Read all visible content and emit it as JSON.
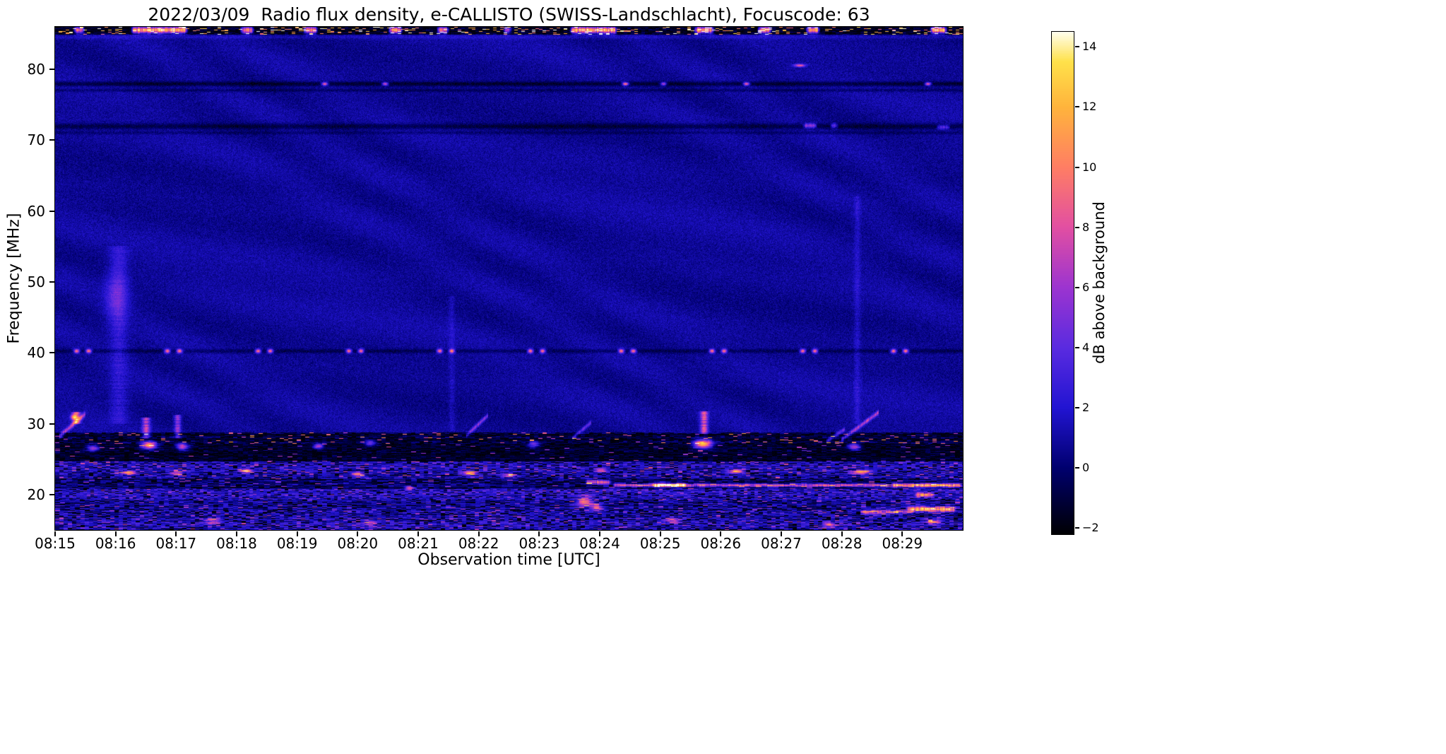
{
  "chart_data": {
    "type": "heatmap",
    "title": "2022/03/09  Radio flux density, e-CALLISTO (SWISS-Landschlacht), Focuscode: 63",
    "xlabel": "Observation time [UTC]",
    "ylabel": "Frequency [MHz]",
    "colorbar_label": "dB above background",
    "time_range_minutes": [
      0,
      15
    ],
    "freq_range": [
      15,
      86
    ],
    "value_range": [
      -2.2,
      14.5
    ],
    "grid": false,
    "x_ticks": [
      {
        "minute": 0,
        "label": "08:15"
      },
      {
        "minute": 1,
        "label": "08:16"
      },
      {
        "minute": 2,
        "label": "08:17"
      },
      {
        "minute": 3,
        "label": "08:18"
      },
      {
        "minute": 4,
        "label": "08:19"
      },
      {
        "minute": 5,
        "label": "08:20"
      },
      {
        "minute": 6,
        "label": "08:21"
      },
      {
        "minute": 7,
        "label": "08:22"
      },
      {
        "minute": 8,
        "label": "08:23"
      },
      {
        "minute": 9,
        "label": "08:24"
      },
      {
        "minute": 10,
        "label": "08:25"
      },
      {
        "minute": 11,
        "label": "08:26"
      },
      {
        "minute": 12,
        "label": "08:27"
      },
      {
        "minute": 13,
        "label": "08:28"
      },
      {
        "minute": 14,
        "label": "08:29"
      }
    ],
    "y_ticks": [
      {
        "value": 80,
        "label": "80"
      },
      {
        "value": 70,
        "label": "70"
      },
      {
        "value": 60,
        "label": "60"
      },
      {
        "value": 50,
        "label": "50"
      },
      {
        "value": 40,
        "label": "40"
      },
      {
        "value": 30,
        "label": "30"
      },
      {
        "value": 20,
        "label": "20"
      }
    ],
    "colorbar_ticks": [
      {
        "value": 14,
        "label": "14"
      },
      {
        "value": 12,
        "label": "12"
      },
      {
        "value": 10,
        "label": "10"
      },
      {
        "value": 8,
        "label": "8"
      },
      {
        "value": 6,
        "label": "6"
      },
      {
        "value": 4,
        "label": "4"
      },
      {
        "value": 2,
        "label": "2"
      },
      {
        "value": 0,
        "label": "0"
      },
      {
        "value": -2,
        "label": "−2"
      }
    ],
    "colormap": [
      [
        0.0,
        "#000004"
      ],
      [
        0.13,
        "#00006e"
      ],
      [
        0.25,
        "#2214d2"
      ],
      [
        0.37,
        "#5a2be0"
      ],
      [
        0.49,
        "#9c34d0"
      ],
      [
        0.61,
        "#e24fa2"
      ],
      [
        0.73,
        "#ff7e64"
      ],
      [
        0.85,
        "#ffb43c"
      ],
      [
        0.94,
        "#ffe14a"
      ],
      [
        1.0,
        "#fffff0"
      ]
    ],
    "background": {
      "mean": 0.8,
      "sigma": 0.45,
      "ripple": 0.28
    },
    "features": {
      "noise_bands": [
        {
          "f": [
            85.0,
            86.0
          ],
          "mean": -1.3,
          "sigma": 0.9,
          "dropout": 0.32,
          "spike_p": 0.12,
          "spike_v": 12,
          "cell": 5,
          "row_jitter": 0.8
        },
        {
          "f": [
            27.1,
            28.7
          ],
          "mean": -0.8,
          "sigma": 1.1,
          "dropout": 0.3,
          "spike_p": 0.045,
          "spike_v": 9,
          "cell": 6,
          "row_jitter": 1.2
        },
        {
          "f": [
            24.6,
            27.1
          ],
          "mean": -1.1,
          "sigma": 0.9,
          "dropout": 0.38,
          "spike_p": 0.02,
          "spike_v": 6,
          "cell": 7,
          "row_jitter": 1.0
        },
        {
          "f": [
            22.2,
            24.6
          ],
          "mean": 1.6,
          "sigma": 1.7,
          "dropout": 0.14,
          "spike_p": 0.05,
          "spike_v": 7,
          "cell": 6,
          "row_jitter": 1.4
        },
        {
          "f": [
            20.7,
            22.2
          ],
          "mean": 0.3,
          "sigma": 1.4,
          "dropout": 0.22,
          "spike_p": 0.03,
          "spike_v": 6,
          "cell": 8,
          "row_jitter": 1.2
        },
        {
          "f": [
            19.2,
            20.7
          ],
          "mean": 2.1,
          "sigma": 1.7,
          "dropout": 0.12,
          "spike_p": 0.05,
          "spike_v": 6,
          "cell": 5,
          "row_jitter": 1.3
        },
        {
          "f": [
            17.6,
            19.2
          ],
          "mean": 1.1,
          "sigma": 1.5,
          "dropout": 0.2,
          "spike_p": 0.04,
          "spike_v": 6,
          "cell": 7,
          "row_jitter": 1.3
        },
        {
          "f": [
            15.0,
            17.6
          ],
          "mean": 1.7,
          "sigma": 1.7,
          "dropout": 0.18,
          "spike_p": 0.05,
          "spike_v": 6,
          "cell": 6,
          "row_jitter": 1.4
        }
      ],
      "h_lines": [
        {
          "f": 84.6,
          "w": 0.25,
          "dv": 0.9
        },
        {
          "f": 78.0,
          "w": 0.32,
          "dv": -2.0
        },
        {
          "f": 77.1,
          "w": 0.22,
          "dv": -1.1
        },
        {
          "f": 72.0,
          "w": 0.4,
          "dv": -1.7
        },
        {
          "f": 71.1,
          "w": 0.22,
          "dv": -0.9
        },
        {
          "f": 40.3,
          "w": 0.28,
          "dv": -1.3
        }
      ],
      "h_segments": [
        {
          "f": 85.6,
          "w": 0.45,
          "t": [
            0.3,
            0.5
          ],
          "v": 10
        },
        {
          "f": 85.6,
          "w": 0.45,
          "t": [
            1.25,
            2.2
          ],
          "v": 13
        },
        {
          "f": 85.6,
          "w": 0.45,
          "t": [
            3.05,
            3.3
          ],
          "v": 11
        },
        {
          "f": 85.6,
          "w": 0.45,
          "t": [
            4.1,
            4.35
          ],
          "v": 12
        },
        {
          "f": 85.6,
          "w": 0.45,
          "t": [
            5.5,
            5.75
          ],
          "v": 12
        },
        {
          "f": 85.6,
          "w": 0.45,
          "t": [
            6.3,
            6.52
          ],
          "v": 11
        },
        {
          "f": 85.6,
          "w": 0.45,
          "t": [
            7.4,
            7.55
          ],
          "v": 10
        },
        {
          "f": 85.6,
          "w": 0.45,
          "t": [
            8.5,
            9.3
          ],
          "v": 13
        },
        {
          "f": 85.6,
          "w": 0.45,
          "t": [
            10.55,
            10.9
          ],
          "v": 12
        },
        {
          "f": 85.6,
          "w": 0.45,
          "t": [
            11.6,
            11.85
          ],
          "v": 11
        },
        {
          "f": 85.6,
          "w": 0.45,
          "t": [
            12.4,
            12.65
          ],
          "v": 12
        },
        {
          "f": 85.6,
          "w": 0.45,
          "t": [
            14.45,
            14.75
          ],
          "v": 13
        },
        {
          "f": 72.1,
          "w": 0.3,
          "t": [
            12.35,
            12.6
          ],
          "v": 6
        },
        {
          "f": 72.1,
          "w": 0.3,
          "t": [
            12.8,
            12.95
          ],
          "v": 5
        },
        {
          "f": 71.9,
          "w": 0.3,
          "t": [
            14.55,
            14.8
          ],
          "v": 4
        },
        {
          "f": 21.8,
          "w": 0.3,
          "t": [
            8.75,
            9.2
          ],
          "v": 8
        },
        {
          "f": 21.35,
          "w": 0.22,
          "t": [
            9.2,
            13.8
          ],
          "v": 7.5
        },
        {
          "f": 21.4,
          "w": 0.25,
          "t": [
            9.85,
            10.45
          ],
          "v": 9
        },
        {
          "f": 21.35,
          "w": 0.25,
          "t": [
            13.8,
            15.0
          ],
          "v": 11.5
        },
        {
          "f": 17.6,
          "w": 0.3,
          "t": [
            13.3,
            14.2
          ],
          "v": 7
        },
        {
          "f": 18.0,
          "w": 0.35,
          "t": [
            14.05,
            14.9
          ],
          "v": 11
        },
        {
          "f": 20.0,
          "w": 0.3,
          "t": [
            14.2,
            14.55
          ],
          "v": 8
        }
      ],
      "v_streaks": [
        {
          "t": 0.35,
          "f": [
            30.0,
            31.6
          ],
          "v": 7,
          "w": 0.06
        },
        {
          "t": 1.5,
          "f": [
            28.0,
            30.8
          ],
          "v": 6,
          "w": 0.06
        },
        {
          "t": 2.02,
          "f": [
            28.0,
            31.2
          ],
          "v": 5,
          "w": 0.05
        },
        {
          "t": 10.72,
          "f": [
            28.6,
            31.7
          ],
          "v": 7,
          "w": 0.06
        },
        {
          "t": 1.05,
          "f": [
            30.0,
            55.0
          ],
          "v": 1.6,
          "w": 0.14
        },
        {
          "t": 13.25,
          "f": [
            30.0,
            62.0
          ],
          "v": 1.2,
          "w": 0.05
        },
        {
          "t": 6.55,
          "f": [
            29.0,
            48.0
          ],
          "v": 0.9,
          "w": 0.05
        }
      ],
      "diagonals": [
        {
          "t": [
            0.08,
            0.5
          ],
          "f": [
            28.3,
            31.5
          ],
          "v": 6,
          "w": 0.35
        },
        {
          "t": [
            6.8,
            7.15
          ],
          "f": [
            28.4,
            31.3
          ],
          "v": 4.5,
          "w": 0.3
        },
        {
          "t": [
            8.55,
            8.85
          ],
          "f": [
            28.0,
            30.3
          ],
          "v": 3.5,
          "w": 0.3
        },
        {
          "t": [
            12.75,
            13.05
          ],
          "f": [
            27.6,
            29.3
          ],
          "v": 4,
          "w": 0.3
        },
        {
          "t": [
            13.0,
            13.6
          ],
          "f": [
            27.8,
            31.7
          ],
          "v": 5.5,
          "w": 0.3
        }
      ],
      "dots": [
        [
          0.35,
          40.3,
          10.2,
          0.045,
          0.28
        ],
        [
          0.55,
          40.3,
          10.2,
          0.045,
          0.28
        ],
        [
          1.85,
          40.3,
          10.2,
          0.045,
          0.28
        ],
        [
          2.05,
          40.3,
          10.2,
          0.045,
          0.28
        ],
        [
          3.35,
          40.3,
          10.2,
          0.045,
          0.28
        ],
        [
          3.55,
          40.3,
          10.2,
          0.045,
          0.28
        ],
        [
          4.85,
          40.3,
          10.2,
          0.045,
          0.28
        ],
        [
          5.05,
          40.3,
          10.2,
          0.045,
          0.28
        ],
        [
          6.35,
          40.3,
          10.2,
          0.045,
          0.28
        ],
        [
          6.55,
          40.3,
          10.2,
          0.045,
          0.28
        ],
        [
          7.85,
          40.3,
          10.2,
          0.045,
          0.28
        ],
        [
          8.05,
          40.3,
          10.2,
          0.045,
          0.28
        ],
        [
          9.35,
          40.3,
          10.2,
          0.045,
          0.28
        ],
        [
          9.55,
          40.3,
          10.2,
          0.045,
          0.28
        ],
        [
          10.85,
          40.3,
          10.2,
          0.045,
          0.28
        ],
        [
          11.05,
          40.3,
          10.2,
          0.045,
          0.28
        ],
        [
          12.35,
          40.3,
          10.2,
          0.045,
          0.28
        ],
        [
          12.55,
          40.3,
          10.2,
          0.045,
          0.28
        ],
        [
          13.85,
          40.3,
          10.2,
          0.045,
          0.28
        ],
        [
          14.05,
          40.3,
          10.2,
          0.045,
          0.28
        ],
        [
          4.45,
          78.0,
          10,
          0.05,
          0.22
        ],
        [
          5.45,
          78.0,
          9,
          0.05,
          0.22
        ],
        [
          9.42,
          78.0,
          11,
          0.05,
          0.22
        ],
        [
          10.05,
          78.0,
          8,
          0.05,
          0.22
        ],
        [
          11.42,
          78.0,
          10,
          0.05,
          0.22
        ],
        [
          14.42,
          78.0,
          9.5,
          0.05,
          0.22
        ],
        [
          12.3,
          80.6,
          8,
          0.09,
          0.2
        ],
        [
          0.62,
          26.6,
          7,
          0.1,
          0.45
        ],
        [
          1.55,
          27.0,
          13,
          0.12,
          0.5
        ],
        [
          2.1,
          26.8,
          9,
          0.1,
          0.45
        ],
        [
          4.35,
          26.9,
          8,
          0.08,
          0.4
        ],
        [
          5.2,
          27.3,
          6,
          0.1,
          0.45
        ],
        [
          7.9,
          27.1,
          6,
          0.1,
          0.45
        ],
        [
          10.7,
          27.2,
          14,
          0.15,
          0.6
        ],
        [
          13.2,
          26.8,
          8,
          0.1,
          0.45
        ],
        [
          1.2,
          23.1,
          11,
          0.12,
          0.28
        ],
        [
          2.0,
          23.0,
          7,
          0.1,
          0.28
        ],
        [
          3.15,
          23.4,
          11,
          0.1,
          0.28
        ],
        [
          5.0,
          22.9,
          9,
          0.1,
          0.28
        ],
        [
          6.85,
          23.1,
          10,
          0.12,
          0.28
        ],
        [
          7.5,
          22.7,
          8,
          0.1,
          0.28
        ],
        [
          9.0,
          23.5,
          7,
          0.1,
          0.28
        ],
        [
          11.25,
          23.3,
          10,
          0.12,
          0.28
        ],
        [
          13.3,
          23.2,
          11,
          0.15,
          0.28
        ],
        [
          8.75,
          19.0,
          8,
          0.15,
          0.8
        ],
        [
          8.95,
          18.2,
          7,
          0.1,
          0.5
        ],
        [
          2.6,
          16.3,
          7,
          0.12,
          0.4
        ],
        [
          5.2,
          16.0,
          6,
          0.1,
          0.4
        ],
        [
          10.2,
          16.4,
          7,
          0.12,
          0.4
        ],
        [
          12.8,
          15.8,
          7,
          0.1,
          0.4
        ],
        [
          14.5,
          16.2,
          8,
          0.12,
          0.4
        ],
        [
          5.85,
          21.0,
          9,
          0.07,
          0.25
        ],
        [
          0.3,
          31.0,
          8,
          0.05,
          0.4
        ],
        [
          1.0,
          48.0,
          2.5,
          0.18,
          3.5
        ]
      ]
    }
  }
}
